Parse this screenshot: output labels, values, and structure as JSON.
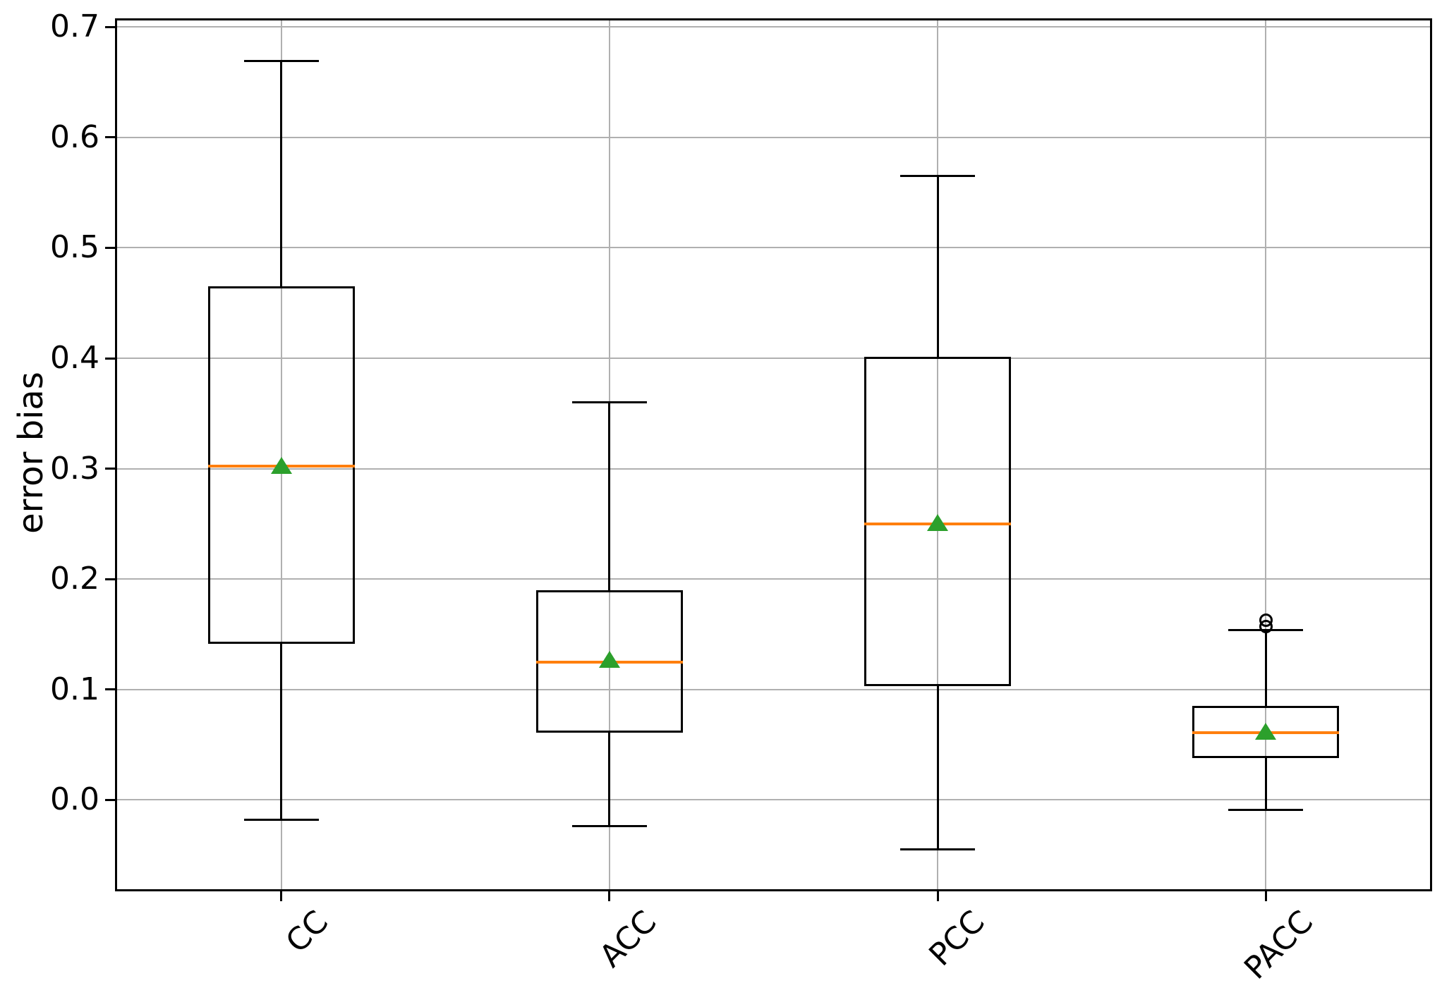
{
  "chart_data": {
    "type": "boxplot",
    "title": "",
    "xlabel": "",
    "ylabel": "error bias",
    "categories": [
      "CC",
      "ACC",
      "PCC",
      "PACC"
    ],
    "ylim": [
      -0.081,
      0.706
    ],
    "yticks": [
      0.0,
      0.1,
      0.2,
      0.3,
      0.4,
      0.5,
      0.6,
      0.7
    ],
    "ytick_labels": [
      "0.0",
      "0.1",
      "0.2",
      "0.3",
      "0.4",
      "0.5",
      "0.6",
      "0.7"
    ],
    "grid": true,
    "legend": "none",
    "show_means": true,
    "series": [
      {
        "name": "CC",
        "whisker_low": -0.018,
        "q1": 0.141,
        "median": 0.302,
        "mean": 0.303,
        "q3": 0.465,
        "whisker_high": 0.669,
        "outliers": []
      },
      {
        "name": "ACC",
        "whisker_low": -0.024,
        "q1": 0.061,
        "median": 0.125,
        "mean": 0.127,
        "q3": 0.19,
        "whisker_high": 0.36,
        "outliers": []
      },
      {
        "name": "PCC",
        "whisker_low": -0.045,
        "q1": 0.103,
        "median": 0.25,
        "mean": 0.251,
        "q3": 0.401,
        "whisker_high": 0.565,
        "outliers": []
      },
      {
        "name": "PACC",
        "whisker_low": -0.009,
        "q1": 0.038,
        "median": 0.061,
        "mean": 0.062,
        "q3": 0.085,
        "whisker_high": 0.154,
        "outliers": [
          0.157,
          0.163
        ]
      }
    ],
    "colors": {
      "median": "#ff7f0e",
      "mean": "#2ca02c",
      "box": "#000000",
      "whisker": "#000000",
      "grid": "#b0b0b0",
      "spine": "#000000",
      "tick_label": "#000000"
    }
  }
}
